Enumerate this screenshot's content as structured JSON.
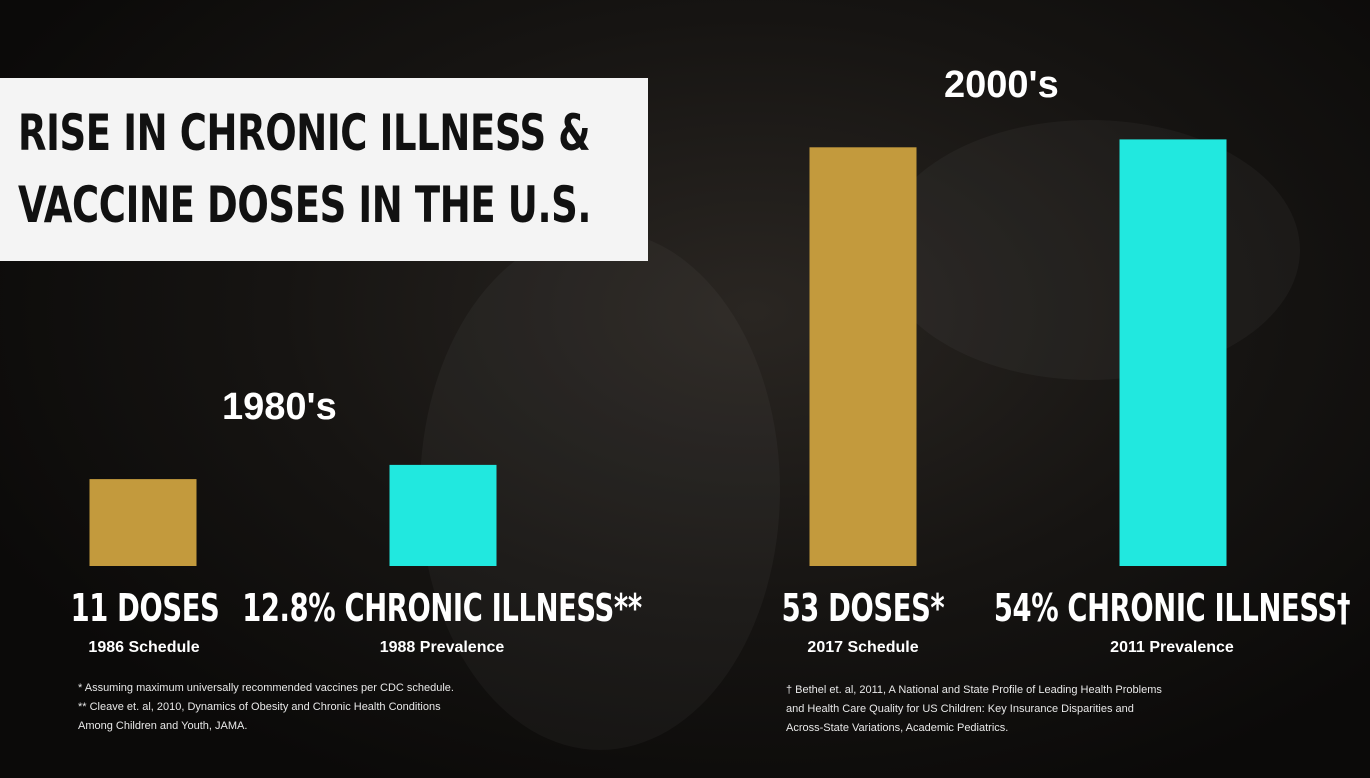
{
  "title": {
    "line1": "RISE IN CHRONIC ILLNESS &",
    "line2": "VACCINE DOSES IN THE U.S."
  },
  "colors": {
    "doses": "#c39a3d",
    "illness": "#21e8df"
  },
  "chart_data": {
    "type": "bar",
    "groups": [
      {
        "era": "1980's",
        "bars": [
          {
            "series": "doses",
            "value": 11,
            "label": "11 DOSES",
            "sublabel": "1986 Schedule"
          },
          {
            "series": "illness",
            "value": 12.8,
            "label": "12.8% CHRONIC ILLNESS**",
            "sublabel": "1988 Prevalence"
          }
        ]
      },
      {
        "era": "2000's",
        "bars": [
          {
            "series": "doses",
            "value": 53,
            "label": "53 DOSES*",
            "sublabel": "2017 Schedule"
          },
          {
            "series": "illness",
            "value": 54,
            "label": "54% CHRONIC ILLNESS†",
            "sublabel": "2011 Prevalence"
          }
        ]
      }
    ]
  },
  "footnotes": {
    "left": [
      "* Assuming maximum universally recommended vaccines per CDC schedule.",
      "** Cleave et. al, 2010, Dynamics of Obesity and Chronic Health Conditions",
      "Among Children and Youth, JAMA."
    ],
    "right": [
      "† Bethel et. al, 2011, A National and State Profile of Leading Health Problems",
      "and Health Care Quality for US Children: Key Insurance Disparities and",
      "Across-State Variations, Academic Pediatrics."
    ]
  }
}
